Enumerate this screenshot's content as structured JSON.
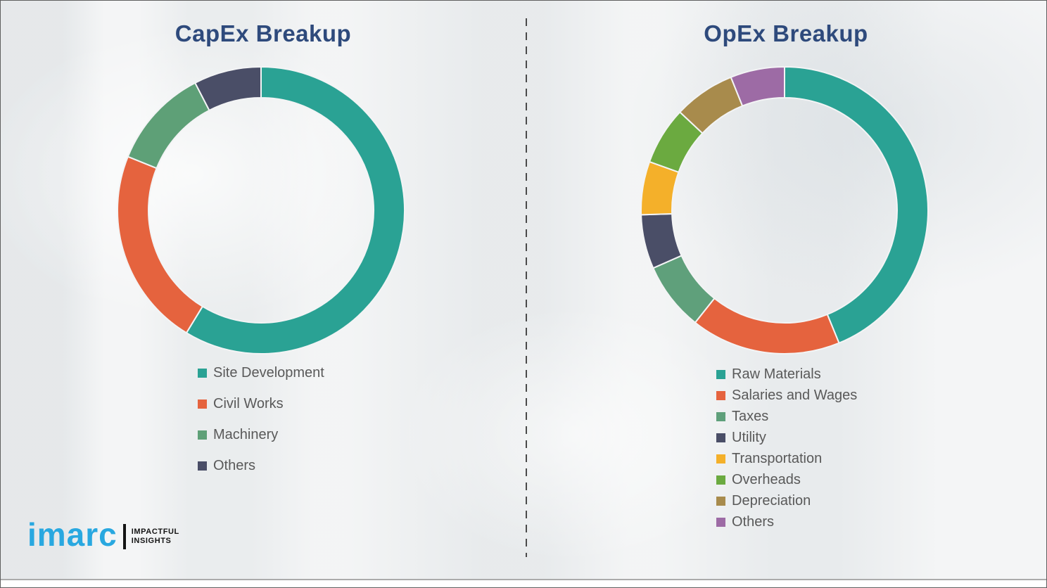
{
  "page": {
    "background_color": "#edeff0",
    "divider_color": "#4a4a4a",
    "title_color": "#2e4a7c",
    "legend_text_color": "#595959"
  },
  "chart_data": [
    {
      "type": "pie",
      "subtype": "donut",
      "title": "CapEx Breakup",
      "categories": [
        "Site Development",
        "Civil Works",
        "Machinery",
        "Others"
      ],
      "values": [
        58.7,
        22.4,
        11.3,
        7.6
      ],
      "colors": [
        "#2aa294",
        "#e5633e",
        "#5ea077",
        "#4a4e67"
      ],
      "start_angle_deg": 0,
      "direction": "clockwise",
      "legend_position": "below-left",
      "data_labels_shown": false,
      "values_note": "percent share estimated from arc angles; no numeric labels shown in image"
    },
    {
      "type": "pie",
      "subtype": "donut",
      "title": "OpEx Breakup",
      "categories": [
        "Raw Materials",
        "Salaries and Wages",
        "Taxes",
        "Utility",
        "Transportation",
        "Overheads",
        "Depreciation",
        "Others"
      ],
      "values": [
        43.8,
        16.9,
        7.7,
        6.1,
        6.0,
        6.5,
        6.9,
        6.1
      ],
      "colors": [
        "#2aa294",
        "#e5633e",
        "#5fa07b",
        "#4a4e67",
        "#f4b02a",
        "#6baa40",
        "#a88b4c",
        "#9d6ba5"
      ],
      "start_angle_deg": 0,
      "direction": "clockwise",
      "legend_position": "below-left",
      "data_labels_shown": false,
      "values_note": "percent share estimated from arc angles; no numeric labels shown in image"
    }
  ],
  "logo": {
    "brand": "imarc",
    "brand_color": "#29a8e0",
    "tagline_line1": "IMPACTFUL",
    "tagline_line2": "INSIGHTS"
  }
}
